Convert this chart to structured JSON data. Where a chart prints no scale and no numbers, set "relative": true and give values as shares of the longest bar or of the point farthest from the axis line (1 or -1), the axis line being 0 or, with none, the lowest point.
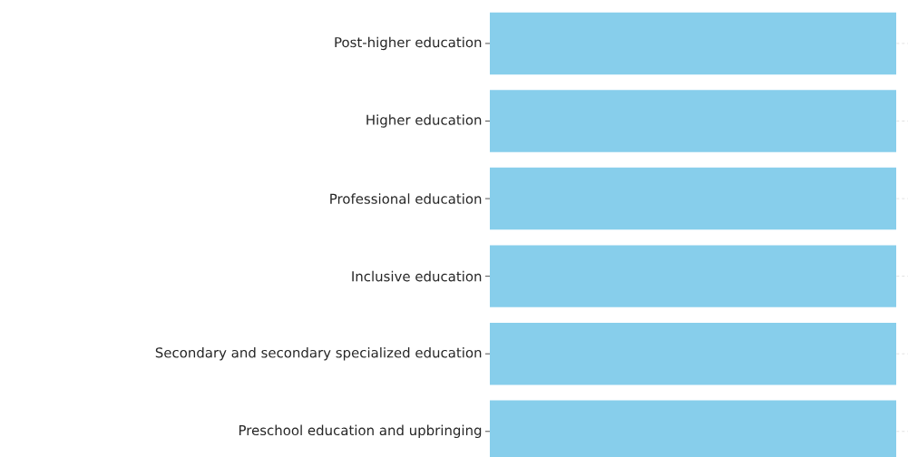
{
  "chart_data": {
    "type": "bar",
    "orientation": "horizontal",
    "relative": true,
    "grid": "y",
    "categories": [
      "Post-higher education",
      "Higher education",
      "Professional education",
      "Inclusive education",
      "Secondary and secondary specialized education",
      "Preschool education and upbringing"
    ],
    "values": [
      1,
      1,
      1,
      1,
      1,
      1
    ],
    "color": "#87ceeb"
  }
}
